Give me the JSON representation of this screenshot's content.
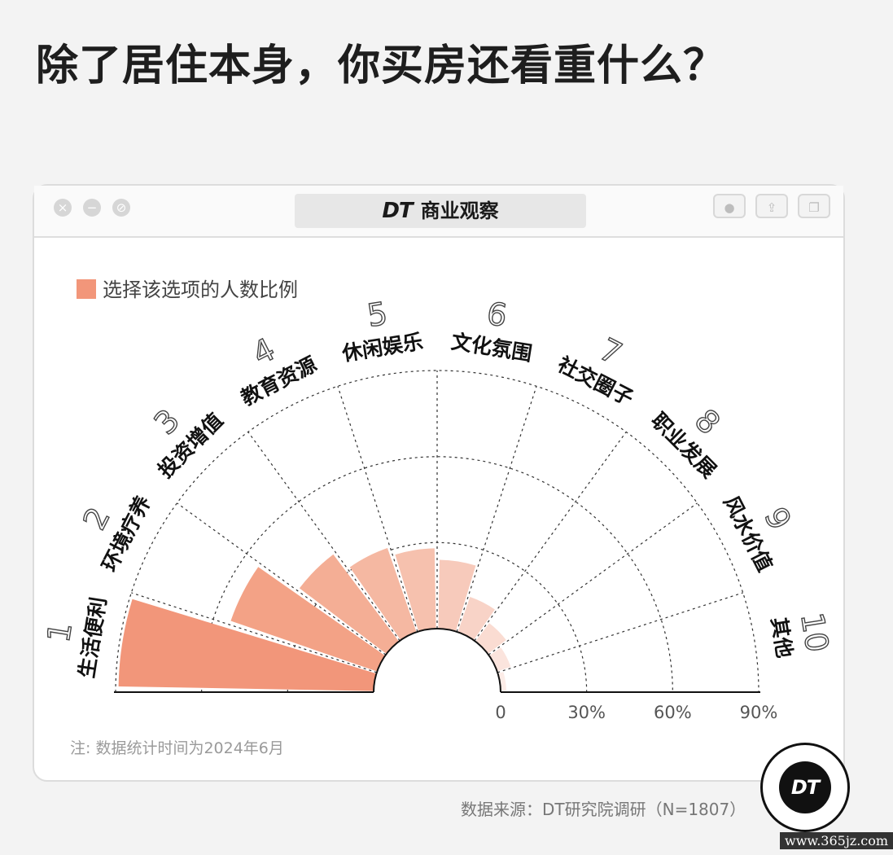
{
  "header": {
    "title": "除了居住本身，你买房还看重什么？"
  },
  "window": {
    "brand_logo": "DT",
    "brand_name": "商业观察",
    "controls": [
      "close-icon",
      "minimize-icon",
      "maximize-icon"
    ],
    "toolbar_icons": [
      "record-icon",
      "share-icon",
      "window-icon"
    ]
  },
  "legend": {
    "label": "选择该选项的人数比例",
    "color": "#f2967a"
  },
  "chart_data": {
    "type": "polar-bar",
    "title": "",
    "series_name": "选择该选项的人数比例",
    "categories": [
      "生活便利",
      "环境疗养",
      "投资增值",
      "教育资源",
      "休闲娱乐",
      "文化氛围",
      "社交圈子",
      "职业发展",
      "风水价值",
      "其他"
    ],
    "indices": [
      "1",
      "2",
      "3",
      "4",
      "5",
      "6",
      "7",
      "8",
      "9",
      "10"
    ],
    "values": [
      89,
      54,
      38,
      31,
      28,
      24,
      13,
      8,
      5,
      2
    ],
    "colors": [
      "#f2967a",
      "#f3a286",
      "#f4ae95",
      "#f5b8a2",
      "#f6c1ae",
      "#f7cabb",
      "#f8d3c7",
      "#fadcd2",
      "#fbe4dd",
      "#fcece7"
    ],
    "radial_axis": {
      "min": 0,
      "max": 90,
      "ticks": [
        "0",
        "30%",
        "60%",
        "90%"
      ],
      "tick_values": [
        0,
        30,
        60,
        90
      ]
    },
    "grid": true
  },
  "footer": {
    "note": "注: 数据统计时间为2024年6月",
    "source": "数据来源：DT研究院调研（N=1807）",
    "logo_text": "DT",
    "site": "www.365jz.com"
  }
}
